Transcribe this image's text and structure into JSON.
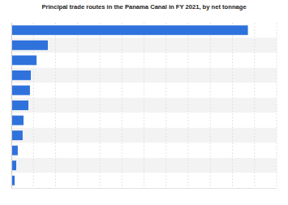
{
  "chart_data": {
    "type": "bar",
    "orientation": "horizontal",
    "title": "Principal trade routes in the Panama Canal in FY 2021, by net tonnage",
    "categories": [
      null,
      null,
      null,
      null,
      null,
      null,
      null,
      null,
      null,
      null,
      null
    ],
    "values": [
      107,
      16.5,
      11.4,
      8.8,
      8.4,
      7.7,
      5.5,
      5.1,
      2.9,
      2.2,
      1.5
    ],
    "color": "#2f72dc",
    "xlim": [
      0,
      120
    ],
    "xticks": [
      0,
      10,
      20,
      30,
      40,
      50,
      60,
      70,
      80,
      90,
      100,
      110,
      120
    ],
    "grid": true,
    "tick_labels": false
  }
}
